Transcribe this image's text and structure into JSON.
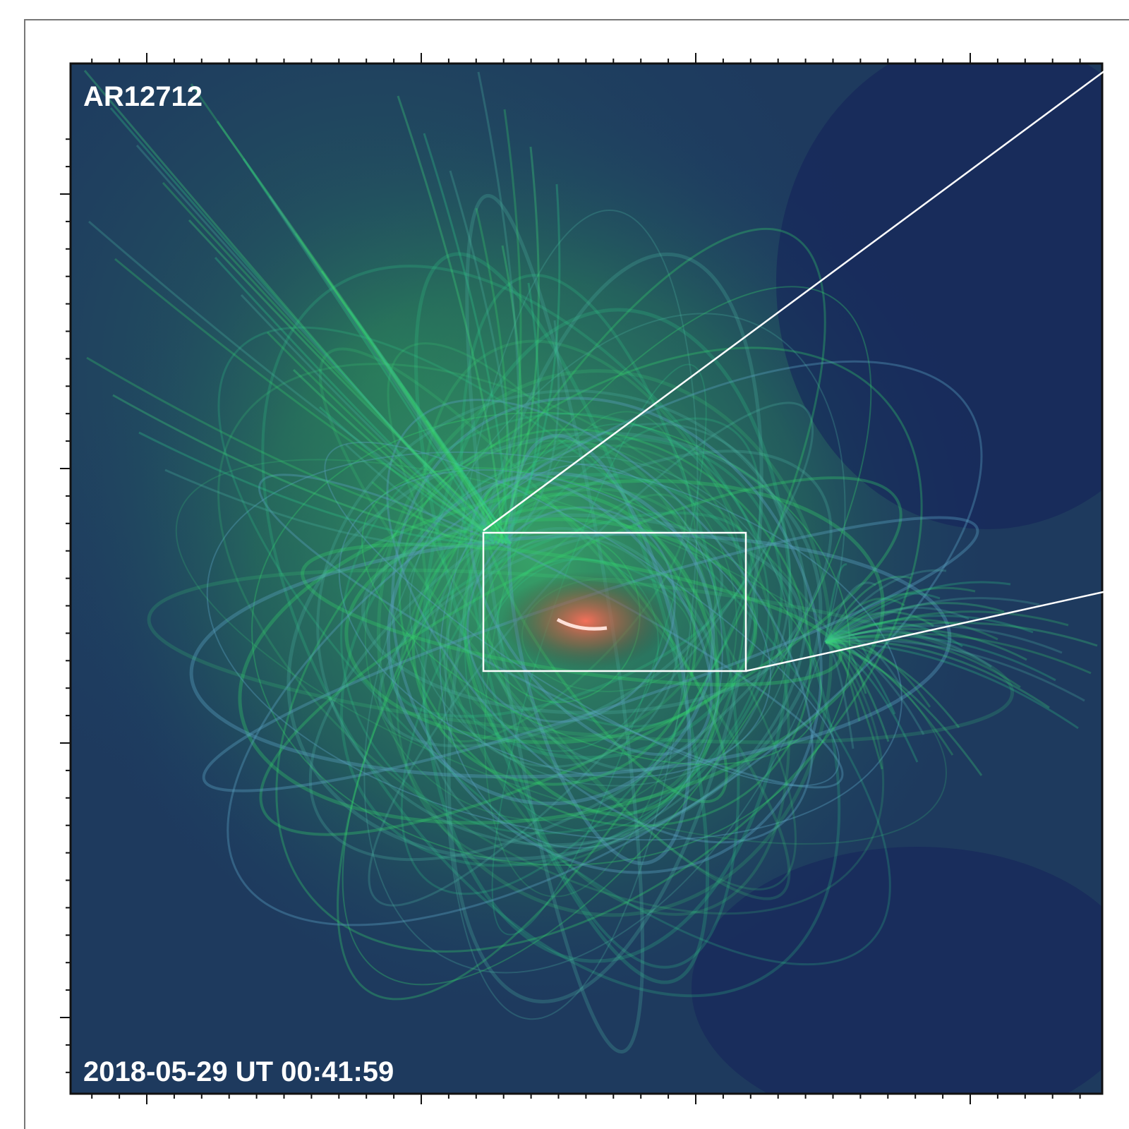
{
  "panel": {
    "label": "AR12712",
    "timestamp": "2018-05-29 UT 00:41:59"
  }
}
